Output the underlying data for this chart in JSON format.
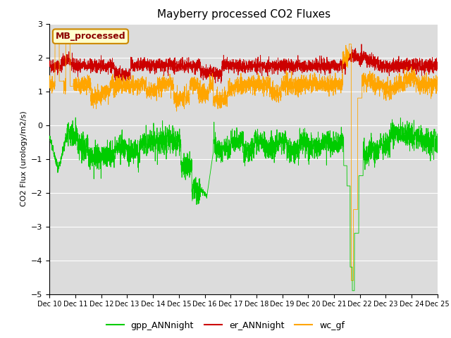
{
  "title": "Mayberry processed CO2 Fluxes",
  "ylabel": "CO2 Flux (urology/m2/s)",
  "ylim": [
    -5.0,
    3.0
  ],
  "yticks": [
    -5.0,
    -4.0,
    -3.0,
    -2.0,
    -1.0,
    0.0,
    1.0,
    2.0,
    3.0
  ],
  "n_points": 3600,
  "colors": {
    "gpp_ANNnight": "#00CC00",
    "er_ANNnight": "#CC0000",
    "wc_gf": "#FFA500"
  },
  "legend_label": "MB_processed",
  "legend_label_color": "#8B0000",
  "legend_box_facecolor": "#FFFFCC",
  "legend_box_edgecolor": "#CC8800",
  "background_color": "#DCDCDC",
  "grid_color": "#FFFFFF",
  "tick_label_fontsize": 8,
  "title_fontsize": 11,
  "legend_fontsize": 9,
  "figwidth": 6.4,
  "figheight": 4.8,
  "dpi": 100
}
